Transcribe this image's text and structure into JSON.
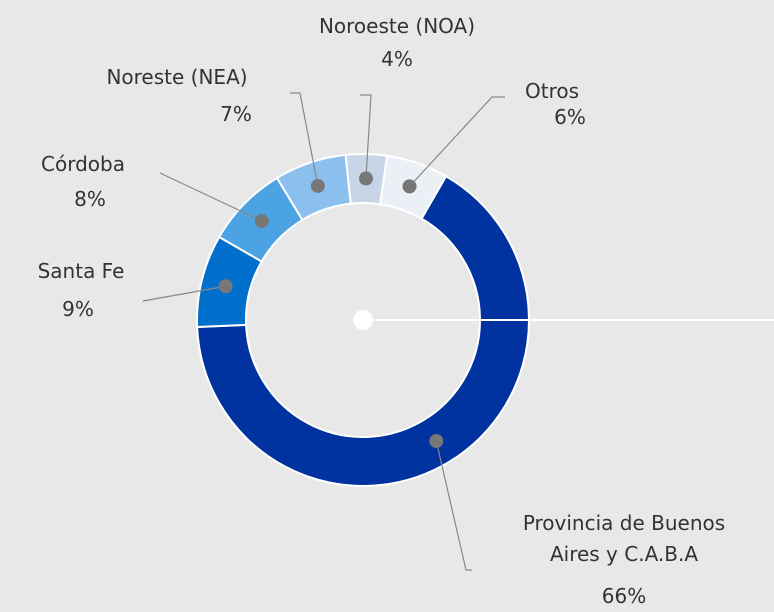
{
  "chart_data": {
    "type": "donut",
    "categories": [
      "Provincia de Buenos Aires y C.A.B.A",
      "Santa Fe",
      "Córdoba",
      "Noreste (NEA)",
      "Noroeste (NOA)",
      "Otros"
    ],
    "values": [
      66,
      9,
      8,
      7,
      4,
      6
    ],
    "value_labels": [
      "66%",
      "9%",
      "8%",
      "7%",
      "4%",
      "6%"
    ],
    "colors": [
      "#0033a0",
      "#0070cc",
      "#4ba3e3",
      "#8bbfee",
      "#c8d5e6",
      "#eaf0f6"
    ]
  }
}
